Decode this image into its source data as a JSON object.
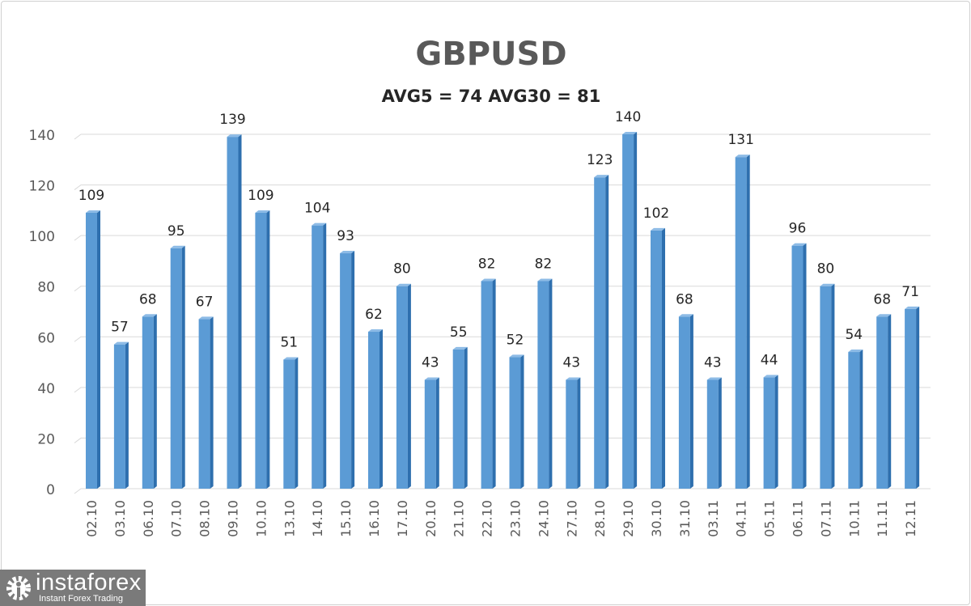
{
  "chart_data": {
    "type": "bar",
    "title": "GBPUSD",
    "subtitle": "AVG5 = 74 AVG30 = 81",
    "xlabel": "",
    "ylabel": "",
    "ylim": [
      0,
      140
    ],
    "yticks": [
      0,
      20,
      40,
      60,
      80,
      100,
      120,
      140
    ],
    "grid": true,
    "bar_color": "#5b9bd5",
    "categories": [
      "02.10",
      "03.10",
      "06.10",
      "07.10",
      "08.10",
      "09.10",
      "10.10",
      "13.10",
      "14.10",
      "15.10",
      "16.10",
      "17.10",
      "20.10",
      "21.10",
      "22.10",
      "23.10",
      "24.10",
      "27.10",
      "28.10",
      "29.10",
      "30.10",
      "31.10",
      "03.11",
      "04.11",
      "05.11",
      "06.11",
      "07.11",
      "10.11",
      "11.11",
      "12.11"
    ],
    "values": [
      109,
      57,
      68,
      95,
      67,
      139,
      109,
      51,
      104,
      93,
      62,
      80,
      43,
      55,
      82,
      52,
      82,
      43,
      123,
      140,
      102,
      68,
      43,
      131,
      44,
      96,
      80,
      54,
      68,
      71
    ]
  },
  "watermark": {
    "name": "instaforex",
    "tagline": "Instant Forex Trading"
  }
}
